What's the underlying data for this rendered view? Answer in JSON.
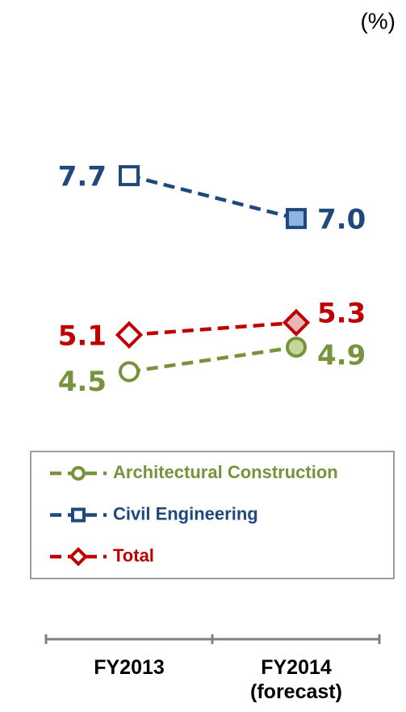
{
  "chart_data": {
    "type": "line",
    "unit_label": "(%)",
    "categories": [
      "FY2013",
      "FY2014\n(forecast)"
    ],
    "series": [
      {
        "name": "Architectural Construction",
        "color": "#77933c",
        "fill": "#c3d69b",
        "marker": "circle",
        "values": [
          4.5,
          4.9
        ]
      },
      {
        "name": "Civil Engineering",
        "color": "#1f497d",
        "fill": "#8eb4e3",
        "marker": "square",
        "values": [
          7.7,
          7.0
        ],
        "value_labels": [
          "7.7",
          "7.0"
        ]
      },
      {
        "name": "Total",
        "color": "#c00000",
        "fill": "#e6b9b8",
        "marker": "diamond",
        "values": [
          5.1,
          5.3
        ]
      }
    ]
  }
}
